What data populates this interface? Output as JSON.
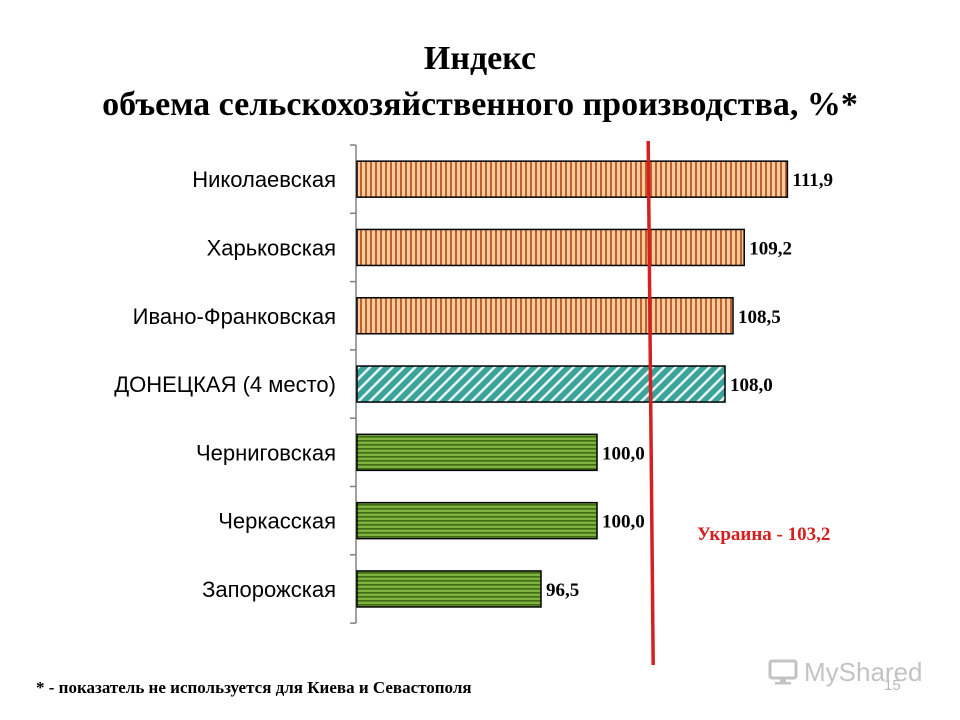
{
  "title": {
    "line1": "Индекс",
    "line2": "объема сельскохозяйственного производства, %*"
  },
  "chart_data": {
    "type": "bar",
    "orientation": "horizontal",
    "categories": [
      "Николаевская",
      "Харьковская",
      "Ивано-Франковская",
      "ДОНЕЦКАЯ (4 место)",
      "Черниговская",
      "Черкасская",
      "Запорожская"
    ],
    "values": [
      111.9,
      109.2,
      108.5,
      108.0,
      100.0,
      100.0,
      96.5
    ],
    "value_labels": [
      "111,9",
      "109,2",
      "108,5",
      "108,0",
      "100,0",
      "100,0",
      "96,5"
    ],
    "groups": [
      "top",
      "top",
      "top",
      "highlight",
      "bottom",
      "bottom",
      "bottom"
    ],
    "group_colors": {
      "top": {
        "fill": "#f7caa0",
        "stripe": "#c0602a"
      },
      "highlight": {
        "fill": "#3aa39a",
        "stripe": "#e8f4f2"
      },
      "bottom": {
        "fill": "#7fb33e",
        "stripe": "#3f6a16"
      }
    },
    "reference": {
      "value": 103.2,
      "label": "Украина  - 103,2",
      "color": "#d42020"
    },
    "grid": false
  },
  "footnote": "* - показатель не используется для Киева и Севастополя",
  "page_number": "15",
  "watermark": {
    "text": "MyShared",
    "icon": "projector-icon"
  }
}
